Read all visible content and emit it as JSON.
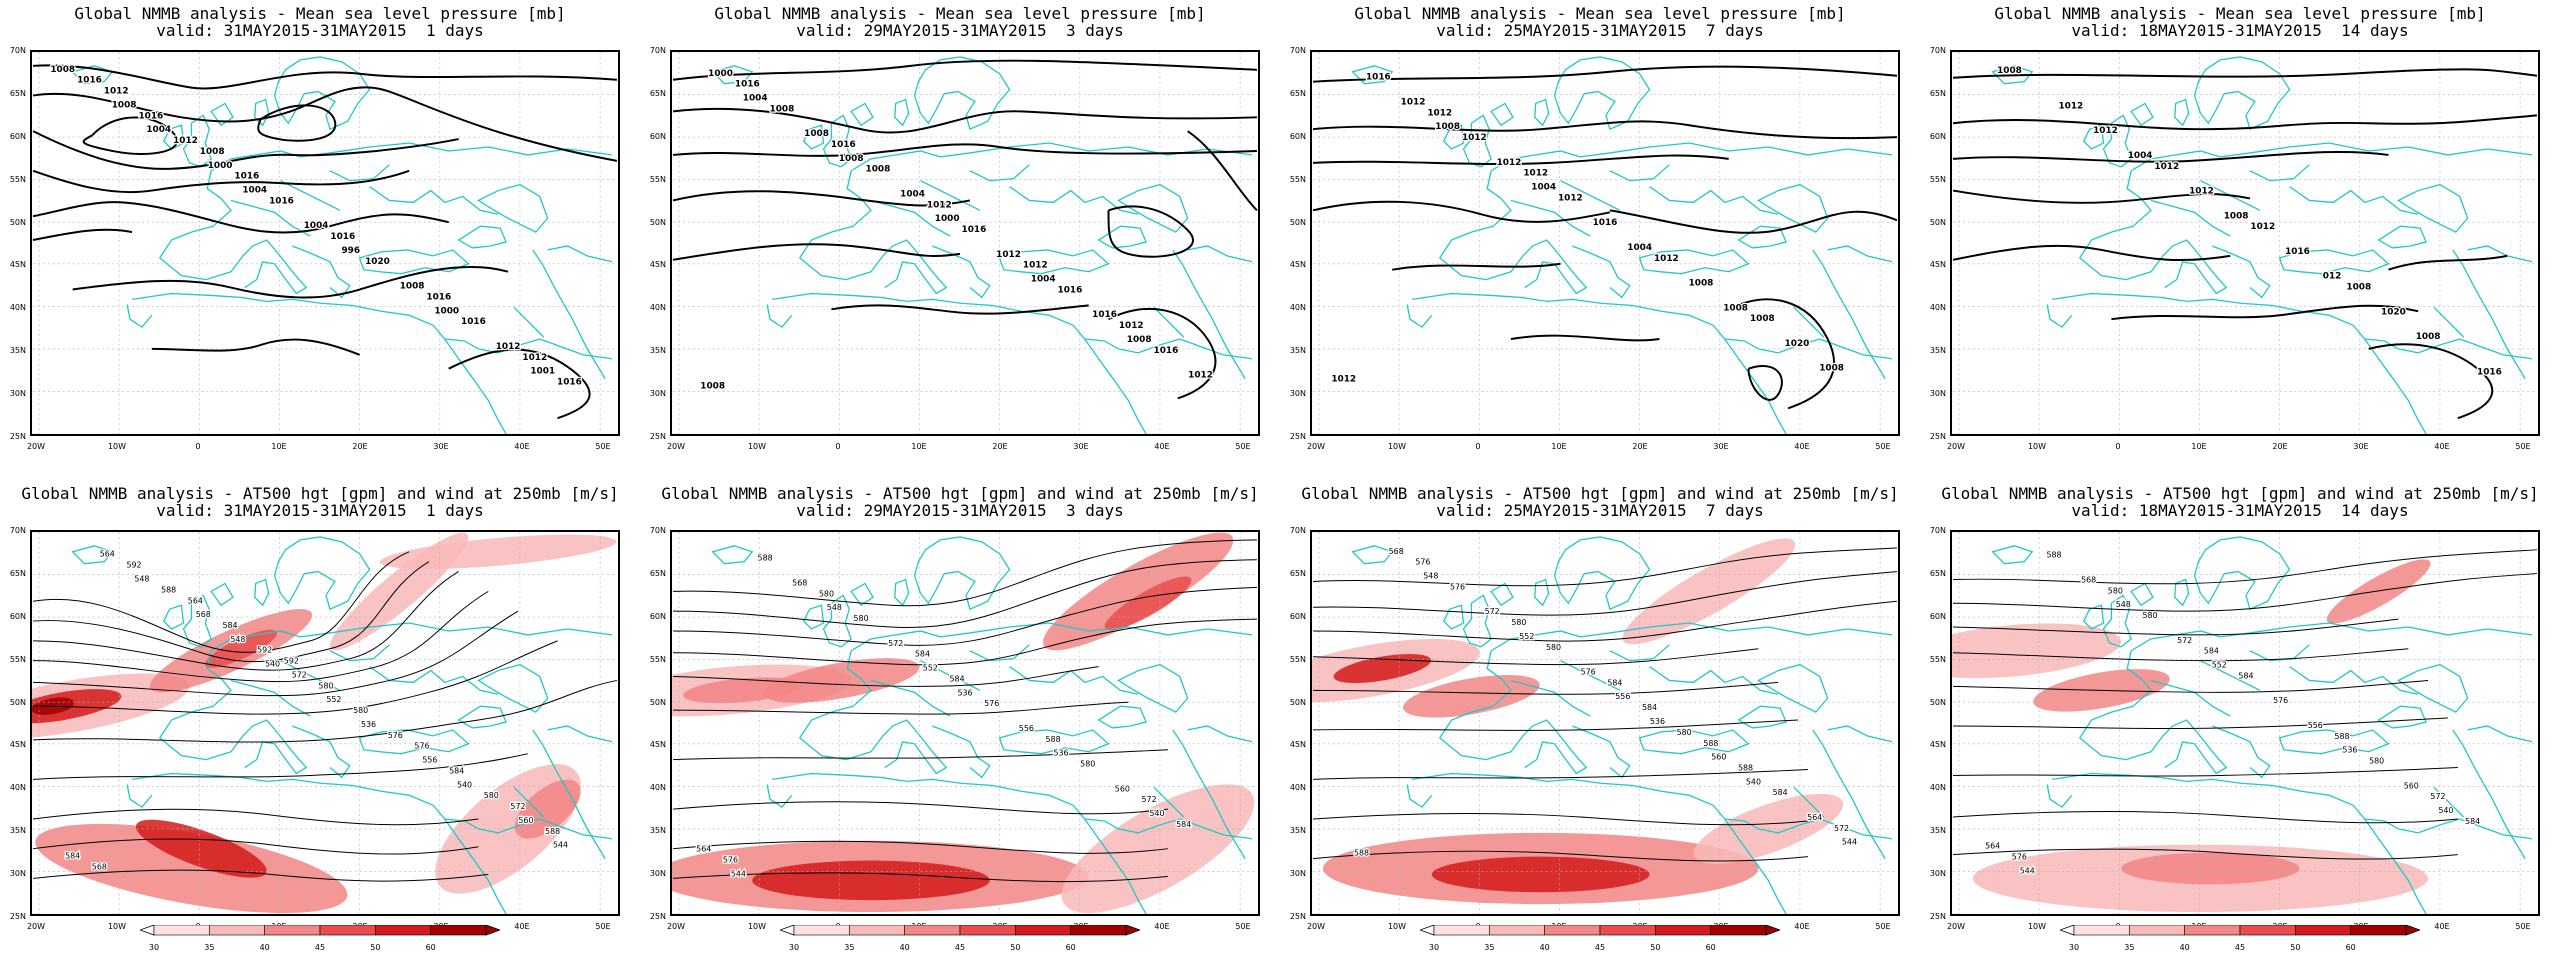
{
  "colors": {
    "coastline": "#1ec8c8",
    "contour": "#000000",
    "grid": "#b0b0b0",
    "wind_shades": [
      "#ffffff",
      "#fde0e0",
      "#f9b9b9",
      "#f28585",
      "#e84c4c",
      "#d41a1a",
      "#a00000"
    ]
  },
  "axes": {
    "lat_labels": [
      "70N",
      "65N",
      "60N",
      "55N",
      "50N",
      "45N",
      "40N",
      "35N",
      "30N",
      "25N"
    ],
    "lon_labels": [
      "20W",
      "10W",
      "0",
      "10E",
      "20E",
      "30E",
      "40E",
      "50E"
    ]
  },
  "colorbar": {
    "ticks": [
      "30",
      "35",
      "40",
      "45",
      "50",
      "60"
    ]
  },
  "mslp_panels": [
    {
      "title_line1": "Global NMMB analysis - Mean sea level pressure [mb]",
      "title_line2": "valid: 31MAY2015-31MAY2015  1 days",
      "labels": [
        "1008",
        "1004",
        "1004",
        "996",
        "1000",
        "1001",
        "1008",
        "1000",
        "1004",
        "1008",
        "1012",
        "1016",
        "1012",
        "1016",
        "1020",
        "1016",
        "1016",
        "1016",
        "1016",
        "1016",
        "1016",
        "1012",
        "1012",
        "1008"
      ]
    },
    {
      "title_line1": "Global NMMB analysis - Mean sea level pressure [mb]",
      "title_line2": "valid: 29MAY2015-31MAY2015  3 days",
      "labels": [
        "1004",
        "1008",
        "1000",
        "1004",
        "1008",
        "1000",
        "1008",
        "1004",
        "1012",
        "1016",
        "1012",
        "1008",
        "1008",
        "1016",
        "1016",
        "1016",
        "1016",
        "1016",
        "1012",
        "1012",
        "1012",
        "1008"
      ]
    },
    {
      "title_line1": "Global NMMB analysis - Mean sea level pressure [mb]",
      "title_line2": "valid: 25MAY2015-31MAY2015  7 days",
      "labels": [
        "1008",
        "1004",
        "1004",
        "1008",
        "1008",
        "1012",
        "1012",
        "1016",
        "1008",
        "1020",
        "1016",
        "1012",
        "1012",
        "1012",
        "1008",
        "1012",
        "1012",
        "1012"
      ]
    },
    {
      "title_line1": "Global NMMB analysis - Mean sea level pressure [mb]",
      "title_line2": "valid: 18MAY2015-31MAY2015  14 days",
      "labels": [
        "1004",
        "1008",
        "012",
        "1008",
        "1008",
        "1012",
        "1012",
        "1016",
        "1020",
        "1016",
        "1012",
        "1012",
        "1012",
        "1008"
      ]
    }
  ],
  "z500_panels": [
    {
      "title_line1": "Global NMMB analysis - AT500 hgt [gpm] and wind at 250mb [m/s]",
      "title_line2": "valid: 31MAY2015-31MAY2015  1 days",
      "labels": [
        "540",
        "536",
        "540",
        "544",
        "548",
        "548",
        "552",
        "556",
        "560",
        "564",
        "568",
        "572",
        "576",
        "580",
        "584",
        "588",
        "592",
        "580",
        "584",
        "588",
        "592",
        "584",
        "580",
        "576",
        "572",
        "568",
        "564",
        "592"
      ]
    },
    {
      "title_line1": "Global NMMB analysis - AT500 hgt [gpm] and wind at 250mb [m/s]",
      "title_line2": "valid: 29MAY2015-31MAY2015  3 days",
      "labels": [
        "536",
        "536",
        "540",
        "544",
        "548",
        "552",
        "556",
        "560",
        "564",
        "568",
        "572",
        "576",
        "580",
        "584",
        "588",
        "580",
        "584",
        "588",
        "572",
        "576",
        "580",
        "584"
      ]
    },
    {
      "title_line1": "Global NMMB analysis - AT500 hgt [gpm] and wind at 250mb [m/s]",
      "title_line2": "valid: 25MAY2015-31MAY2015  7 days",
      "labels": [
        "536",
        "540",
        "544",
        "548",
        "552",
        "556",
        "560",
        "564",
        "568",
        "572",
        "576",
        "580",
        "584",
        "588",
        "576",
        "580",
        "584",
        "588",
        "572",
        "576",
        "580",
        "584",
        "588"
      ]
    },
    {
      "title_line1": "Global NMMB analysis - AT500 hgt [gpm] and wind at 250mb [m/s]",
      "title_line2": "valid: 18MAY2015-31MAY2015  14 days",
      "labels": [
        "536",
        "540",
        "544",
        "548",
        "552",
        "556",
        "560",
        "564",
        "568",
        "572",
        "576",
        "580",
        "584",
        "588",
        "580",
        "584",
        "588",
        "572",
        "576",
        "580",
        "584"
      ]
    }
  ]
}
